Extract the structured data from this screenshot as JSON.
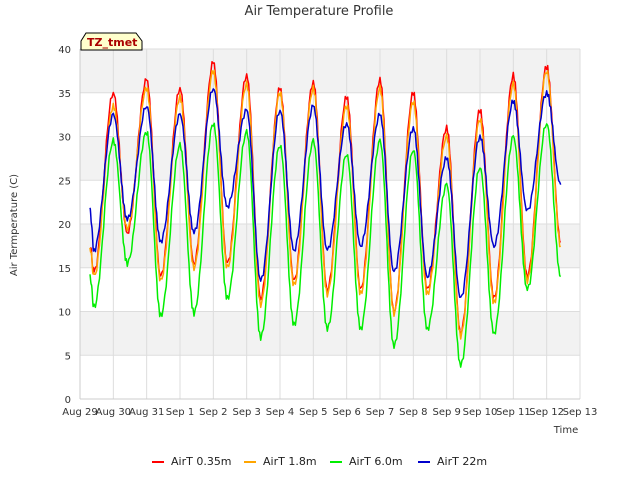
{
  "chart_data": {
    "type": "line",
    "title": "Air Temperature Profile",
    "xlabel": "Time",
    "ylabel": "Air Termperature (C)",
    "badge": "TZ_tmet",
    "x_ticks": [
      "Aug 29",
      "Aug 30",
      "Aug 31",
      "Sep 1",
      "Sep 2",
      "Sep 3",
      "Sep 4",
      "Sep 5",
      "Sep 6",
      "Sep 7",
      "Sep 8",
      "Sep 9",
      "Sep 10",
      "Sep 11",
      "Sep 12",
      "Sep 13"
    ],
    "xlim": [
      0,
      15
    ],
    "y_ticks": [
      0,
      5,
      10,
      15,
      20,
      25,
      30,
      35,
      40
    ],
    "ylim": [
      0,
      40
    ],
    "grid": true,
    "legend_position": "bottom",
    "day_marks": [
      0.42,
      1.0,
      1.42,
      2.0,
      2.42,
      3.0,
      3.42,
      4.0,
      4.42,
      5.0,
      5.42,
      6.0,
      6.42,
      7.0,
      7.42,
      8.0,
      8.42,
      9.0,
      9.42,
      10.0,
      10.42,
      11.0,
      11.42,
      12.0,
      12.42,
      13.0,
      13.42,
      14.0,
      14.42
    ],
    "series": [
      {
        "name": "AirT 0.35m",
        "color": "#ff0000",
        "start": 17.5,
        "day_values": [
          14.5,
          35.0,
          19.0,
          36.5,
          14.0,
          35.5,
          15.5,
          38.5,
          15.5,
          37.0,
          11.5,
          35.5,
          13.5,
          36.2,
          12.5,
          34.5,
          12.5,
          36.5,
          10.0,
          35.0,
          12.5,
          31.0,
          7.5,
          33.0,
          11.5,
          37.0,
          14.0,
          38.0,
          18.0
        ]
      },
      {
        "name": "AirT 1.8m",
        "color": "#ffa500",
        "start": 17.3,
        "day_values": [
          14.0,
          33.5,
          19.5,
          35.5,
          13.5,
          34.5,
          15.0,
          37.5,
          15.0,
          36.0,
          10.8,
          35.0,
          13.0,
          35.5,
          12.0,
          33.5,
          12.0,
          35.5,
          9.8,
          34.0,
          12.0,
          30.0,
          7.2,
          32.0,
          11.0,
          36.0,
          13.5,
          37.5,
          17.5
        ]
      },
      {
        "name": "AirT 6.0m",
        "color": "#00ee00",
        "start": 14.0,
        "day_values": [
          10.5,
          29.5,
          15.5,
          30.5,
          9.5,
          29.0,
          9.8,
          31.5,
          11.5,
          30.5,
          7.0,
          29.0,
          8.5,
          29.5,
          8.0,
          28.0,
          8.0,
          29.5,
          6.0,
          28.5,
          8.0,
          24.5,
          3.8,
          26.5,
          7.5,
          30.0,
          12.5,
          31.5,
          14.0
        ]
      },
      {
        "name": "AirT 22m",
        "color": "#0000cc",
        "start": 21.5,
        "day_values": [
          17.0,
          32.5,
          20.5,
          33.5,
          18.0,
          32.5,
          19.0,
          35.5,
          22.0,
          33.0,
          13.5,
          33.0,
          17.0,
          33.5,
          17.0,
          31.5,
          17.5,
          32.5,
          14.5,
          31.0,
          14.0,
          27.5,
          11.5,
          30.0,
          17.5,
          34.0,
          21.5,
          35.0,
          24.5
        ]
      }
    ]
  }
}
